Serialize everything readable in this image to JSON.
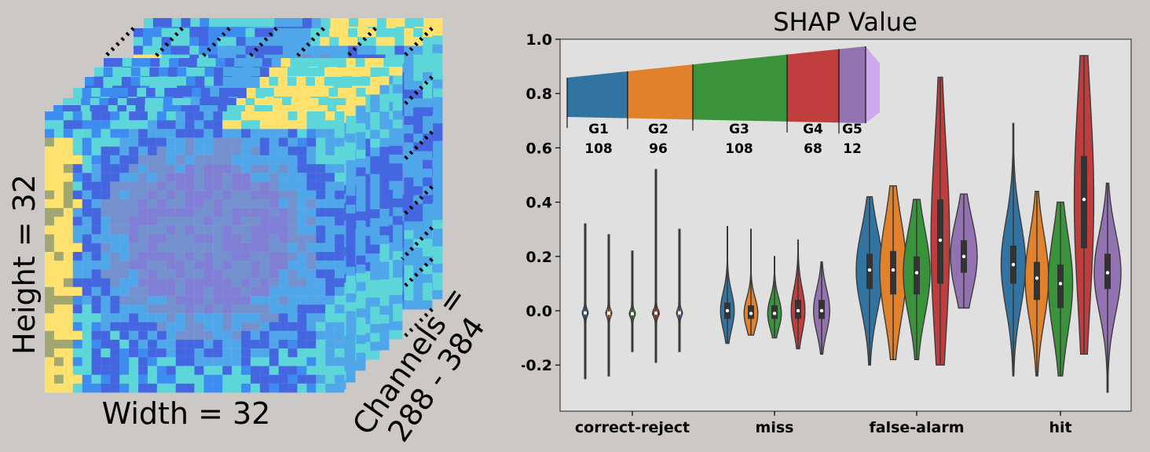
{
  "figure": {
    "left_panel": {
      "height_label": "Height = 32",
      "width_label": "Width = 32",
      "channels_label_line1": "Channels =",
      "channels_label_line2": "288 - 384",
      "palette": [
        "#ffe16e",
        "#a1a771",
        "#5cd6d8",
        "#4fa7ea",
        "#3d8cf0",
        "#4466e0",
        "#7f7fd5",
        "#7390cf",
        "#45d49f"
      ]
    }
  },
  "chart_data": {
    "type": "violin",
    "title": "SHAP Value",
    "xlabel": "",
    "ylabel": "",
    "ylim": [
      -0.37,
      1.0
    ],
    "yticks": [
      -0.2,
      0.0,
      0.2,
      0.4,
      0.6,
      0.8,
      1.0
    ],
    "ytick_labels": [
      "-0.2",
      "0.0",
      "0.2",
      "0.4",
      "0.6",
      "0.8",
      "1.0"
    ],
    "categories": [
      "correct-reject",
      "miss",
      "false-alarm",
      "hit"
    ],
    "background": "#e0e0e0",
    "series": [
      {
        "name": "G1",
        "color": "#3274a1",
        "violins": [
          {
            "min": -0.25,
            "q1": -0.012,
            "median": -0.008,
            "q3": -0.004,
            "max": 0.32,
            "width": 0.016
          },
          {
            "min": -0.12,
            "q1": -0.03,
            "median": 0.0,
            "q3": 0.03,
            "max": 0.31,
            "width": 0.2
          },
          {
            "min": -0.2,
            "q1": 0.08,
            "median": 0.15,
            "q3": 0.21,
            "max": 0.42,
            "width": 0.5
          },
          {
            "min": -0.24,
            "q1": 0.1,
            "median": 0.17,
            "q3": 0.24,
            "max": 0.69,
            "width": 0.42
          }
        ]
      },
      {
        "name": "G2",
        "color": "#e1812c",
        "violins": [
          {
            "min": -0.24,
            "q1": -0.012,
            "median": -0.009,
            "q3": -0.005,
            "max": 0.28,
            "width": 0.016
          },
          {
            "min": -0.09,
            "q1": -0.03,
            "median": -0.01,
            "q3": 0.02,
            "max": 0.3,
            "width": 0.2
          },
          {
            "min": -0.18,
            "q1": 0.06,
            "median": 0.15,
            "q3": 0.22,
            "max": 0.46,
            "width": 0.55
          },
          {
            "min": -0.24,
            "q1": 0.04,
            "median": 0.12,
            "q3": 0.18,
            "max": 0.44,
            "width": 0.4
          }
        ]
      },
      {
        "name": "G3",
        "color": "#3a923a",
        "violins": [
          {
            "min": -0.15,
            "q1": -0.014,
            "median": -0.011,
            "q3": -0.007,
            "max": 0.22,
            "width": 0.016
          },
          {
            "min": -0.1,
            "q1": -0.03,
            "median": -0.01,
            "q3": 0.02,
            "max": 0.2,
            "width": 0.2
          },
          {
            "min": -0.18,
            "q1": 0.06,
            "median": 0.14,
            "q3": 0.2,
            "max": 0.41,
            "width": 0.55
          },
          {
            "min": -0.24,
            "q1": 0.01,
            "median": 0.1,
            "q3": 0.17,
            "max": 0.4,
            "width": 0.42
          }
        ]
      },
      {
        "name": "G4",
        "color": "#c03d3e",
        "violins": [
          {
            "min": -0.19,
            "q1": -0.014,
            "median": -0.009,
            "q3": -0.004,
            "max": 0.52,
            "width": 0.04
          },
          {
            "min": -0.14,
            "q1": -0.03,
            "median": 0.0,
            "q3": 0.04,
            "max": 0.26,
            "width": 0.2
          },
          {
            "min": -0.2,
            "q1": 0.1,
            "median": 0.26,
            "q3": 0.41,
            "max": 0.86,
            "width": 0.3
          },
          {
            "min": -0.16,
            "q1": 0.23,
            "median": 0.41,
            "q3": 0.57,
            "max": 0.94,
            "width": 0.32
          }
        ]
      },
      {
        "name": "G5",
        "color": "#9372b2",
        "violins": [
          {
            "min": -0.15,
            "q1": -0.012,
            "median": -0.008,
            "q3": -0.004,
            "max": 0.3,
            "width": 0.016
          },
          {
            "min": -0.16,
            "q1": -0.03,
            "median": 0.0,
            "q3": 0.04,
            "max": 0.18,
            "width": 0.25
          },
          {
            "min": 0.01,
            "q1": 0.14,
            "median": 0.2,
            "q3": 0.26,
            "max": 0.43,
            "width": 0.55
          },
          {
            "min": -0.3,
            "q1": 0.08,
            "median": 0.14,
            "q3": 0.21,
            "max": 0.47,
            "width": 0.55
          }
        ]
      }
    ],
    "group_legend": [
      {
        "name": "G1",
        "count": "108",
        "color": "#3274a1"
      },
      {
        "name": "G2",
        "count": "96",
        "color": "#e1812c"
      },
      {
        "name": "G3",
        "count": "108",
        "color": "#3a923a"
      },
      {
        "name": "G4",
        "count": "68",
        "color": "#c03d3e"
      },
      {
        "name": "G5",
        "count": "12",
        "color": "#9372b2"
      }
    ],
    "legend_extra_color": "#cda9ee"
  }
}
